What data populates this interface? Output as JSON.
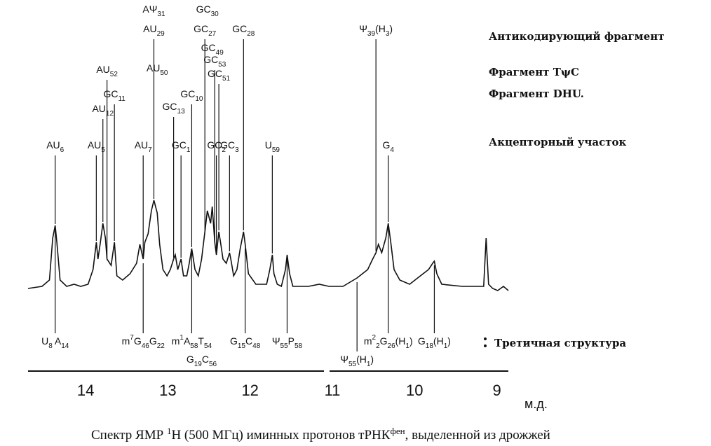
{
  "chart_data": {
    "type": "line",
    "color": "#111111",
    "xlim": [
      14.7,
      8.86
    ],
    "ylim": [
      0,
      100
    ],
    "xticks": [
      14,
      13,
      12,
      11,
      10,
      9
    ],
    "xlabel": "м.д.",
    "x": [
      14.7,
      14.53,
      14.44,
      14.4,
      14.37,
      14.35,
      14.31,
      14.23,
      14.14,
      14.06,
      13.97,
      13.91,
      13.87,
      13.85,
      13.82,
      13.79,
      13.76,
      13.74,
      13.69,
      13.65,
      13.62,
      13.55,
      13.46,
      13.38,
      13.34,
      13.3,
      13.28,
      13.24,
      13.2,
      13.17,
      13.13,
      13.1,
      13.06,
      13.01,
      12.97,
      12.93,
      12.91,
      12.88,
      12.84,
      12.81,
      12.77,
      12.74,
      12.71,
      12.67,
      12.63,
      12.59,
      12.55,
      12.52,
      12.48,
      12.46,
      12.43,
      12.41,
      12.38,
      12.36,
      12.33,
      12.29,
      12.25,
      12.23,
      12.2,
      12.16,
      12.12,
      12.08,
      12.06,
      12.02,
      11.93,
      11.8,
      11.76,
      11.73,
      11.71,
      11.67,
      11.62,
      11.57,
      11.55,
      11.52,
      11.48,
      11.29,
      11.16,
      11.04,
      10.87,
      10.7,
      10.57,
      10.51,
      10.47,
      10.44,
      10.4,
      10.35,
      10.32,
      10.29,
      10.25,
      10.18,
      10.06,
      9.93,
      9.83,
      9.78,
      9.76,
      9.73,
      9.67,
      9.42,
      9.16,
      9.13,
      9.1,
      9.05,
      8.99,
      8.92,
      8.86
    ],
    "values": [
      1,
      2,
      5,
      25,
      31,
      23,
      5,
      2,
      3,
      2,
      3,
      10,
      23,
      15,
      23,
      32,
      25,
      15,
      12,
      23,
      7,
      5,
      8,
      13,
      22,
      15,
      23,
      27,
      38,
      43,
      37,
      22,
      10,
      7,
      10,
      15,
      17,
      10,
      15,
      7,
      7,
      13,
      20,
      10,
      7,
      15,
      28,
      38,
      32,
      40,
      23,
      17,
      28,
      23,
      15,
      13,
      18,
      14,
      7,
      10,
      20,
      28,
      22,
      8,
      3,
      3,
      10,
      17,
      8,
      3,
      2,
      10,
      17,
      8,
      2,
      2,
      3,
      2,
      2,
      6,
      10,
      15,
      18,
      22,
      18,
      25,
      32,
      23,
      10,
      5,
      3,
      7,
      10,
      13,
      14,
      8,
      3,
      2,
      2,
      25,
      3,
      1,
      0,
      2,
      0
    ],
    "annotations": [
      {
        "x": 14.37,
        "parts": [
          {
            "text": "AU"
          },
          {
            "sub": "6"
          }
        ]
      },
      {
        "x": 13.87,
        "parts": [
          {
            "text": "AU"
          },
          {
            "sub": "5"
          }
        ]
      },
      {
        "x": 13.74,
        "parts": [
          {
            "text": "AU"
          },
          {
            "sub": "52"
          }
        ]
      },
      {
        "x": 13.79,
        "parts": [
          {
            "text": "AU"
          },
          {
            "sub": "12"
          }
        ]
      },
      {
        "x": 13.65,
        "parts": [
          {
            "text": "GC"
          },
          {
            "sub": "11"
          }
        ]
      },
      {
        "x": 13.3,
        "parts": [
          {
            "text": "AU"
          },
          {
            "sub": "7"
          }
        ]
      },
      {
        "x": 13.17,
        "parts": [
          {
            "text": "AΨ"
          },
          {
            "sub": "31"
          }
        ]
      },
      {
        "x": 13.17,
        "parts": [
          {
            "text": "AU"
          },
          {
            "sub": "29"
          }
        ]
      },
      {
        "x": 13.13,
        "parts": [
          {
            "text": "AU"
          },
          {
            "sub": "50"
          }
        ]
      },
      {
        "x": 12.93,
        "parts": [
          {
            "text": "GC"
          },
          {
            "sub": "13"
          }
        ]
      },
      {
        "x": 12.71,
        "parts": [
          {
            "text": "GC"
          },
          {
            "sub": "10"
          }
        ]
      },
      {
        "x": 12.84,
        "parts": [
          {
            "text": "GC"
          },
          {
            "sub": "1"
          }
        ]
      },
      {
        "x": 12.52,
        "parts": [
          {
            "text": "GC"
          },
          {
            "sub": "30"
          }
        ]
      },
      {
        "x": 12.55,
        "parts": [
          {
            "text": "GC"
          },
          {
            "sub": "27"
          }
        ]
      },
      {
        "x": 12.46,
        "parts": [
          {
            "text": "GC"
          },
          {
            "sub": "49"
          }
        ]
      },
      {
        "x": 12.43,
        "parts": [
          {
            "text": "GC"
          },
          {
            "sub": "53"
          }
        ]
      },
      {
        "x": 12.38,
        "parts": [
          {
            "text": "GC"
          },
          {
            "sub": "51"
          }
        ]
      },
      {
        "x": 12.41,
        "parts": [
          {
            "text": "GC"
          },
          {
            "sub": "2"
          }
        ]
      },
      {
        "x": 12.25,
        "parts": [
          {
            "text": "GC"
          },
          {
            "sub": "3"
          }
        ]
      },
      {
        "x": 12.08,
        "parts": [
          {
            "text": "GC"
          },
          {
            "sub": "28"
          }
        ]
      },
      {
        "x": 11.73,
        "parts": [
          {
            "text": "U"
          },
          {
            "sub": "59"
          }
        ]
      },
      {
        "x": 10.47,
        "parts": [
          {
            "text": "Ψ"
          },
          {
            "sub": "39"
          },
          {
            "text": "(H"
          },
          {
            "sub": "3"
          },
          {
            "text": ")"
          }
        ]
      },
      {
        "x": 10.32,
        "parts": [
          {
            "text": "G"
          },
          {
            "sub": "4"
          }
        ]
      }
    ],
    "annotations_below": [
      {
        "x": 14.37,
        "parts": [
          {
            "text": "U"
          },
          {
            "sub": "8"
          },
          {
            "text": " A"
          },
          {
            "sub": "14"
          }
        ]
      },
      {
        "x": 13.3,
        "parts": [
          {
            "text": "m"
          },
          {
            "sup": "7"
          },
          {
            "text": "G"
          },
          {
            "sub": "46"
          },
          {
            "text": "G"
          },
          {
            "sub": "22"
          }
        ]
      },
      {
        "x": 12.71,
        "parts": [
          {
            "text": "m"
          },
          {
            "sup": "1"
          },
          {
            "text": "A"
          },
          {
            "sub": "58"
          },
          {
            "text": "T"
          },
          {
            "sub": "54"
          }
        ]
      },
      {
        "x": 12.59,
        "parts": [
          {
            "text": "G"
          },
          {
            "sub": "19"
          },
          {
            "text": "C"
          },
          {
            "sub": "56"
          }
        ]
      },
      {
        "x": 12.06,
        "parts": [
          {
            "text": "G"
          },
          {
            "sub": "15"
          },
          {
            "text": "C"
          },
          {
            "sub": "48"
          }
        ]
      },
      {
        "x": 11.55,
        "parts": [
          {
            "text": "Ψ"
          },
          {
            "sub": "55"
          },
          {
            "text": "P"
          },
          {
            "sub": "58"
          }
        ]
      },
      {
        "x": 10.7,
        "parts": [
          {
            "text": "Ψ"
          },
          {
            "sub": "55"
          },
          {
            "text": "(H"
          },
          {
            "sub": "1"
          },
          {
            "text": ")"
          }
        ]
      },
      {
        "x": 10.32,
        "parts": [
          {
            "text": "m"
          },
          {
            "sup": "2"
          },
          {
            "sub": "2"
          },
          {
            "text": "G"
          },
          {
            "sub": "26"
          },
          {
            "text": "(H"
          },
          {
            "sub": "1"
          },
          {
            "text": ")"
          }
        ]
      },
      {
        "x": 9.76,
        "parts": [
          {
            "text": "G"
          },
          {
            "sub": "18"
          },
          {
            "text": "(H"
          },
          {
            "sub": "1"
          },
          {
            "text": ")"
          }
        ]
      }
    ],
    "notes": [
      "Антикодирующий фрагмент",
      "Фрагмент TψC",
      "Фрагмент DHU.",
      "Акцепторный участок"
    ],
    "tertiary_note": "Третичная структура",
    "caption": [
      {
        "text": "Спектр ЯМР "
      },
      {
        "sup": "1"
      },
      {
        "text": "H (500 МГц) иминных протонов тРНК"
      },
      {
        "sup": "фен"
      },
      {
        "text": ", выделенной из дрожжей"
      }
    ]
  }
}
